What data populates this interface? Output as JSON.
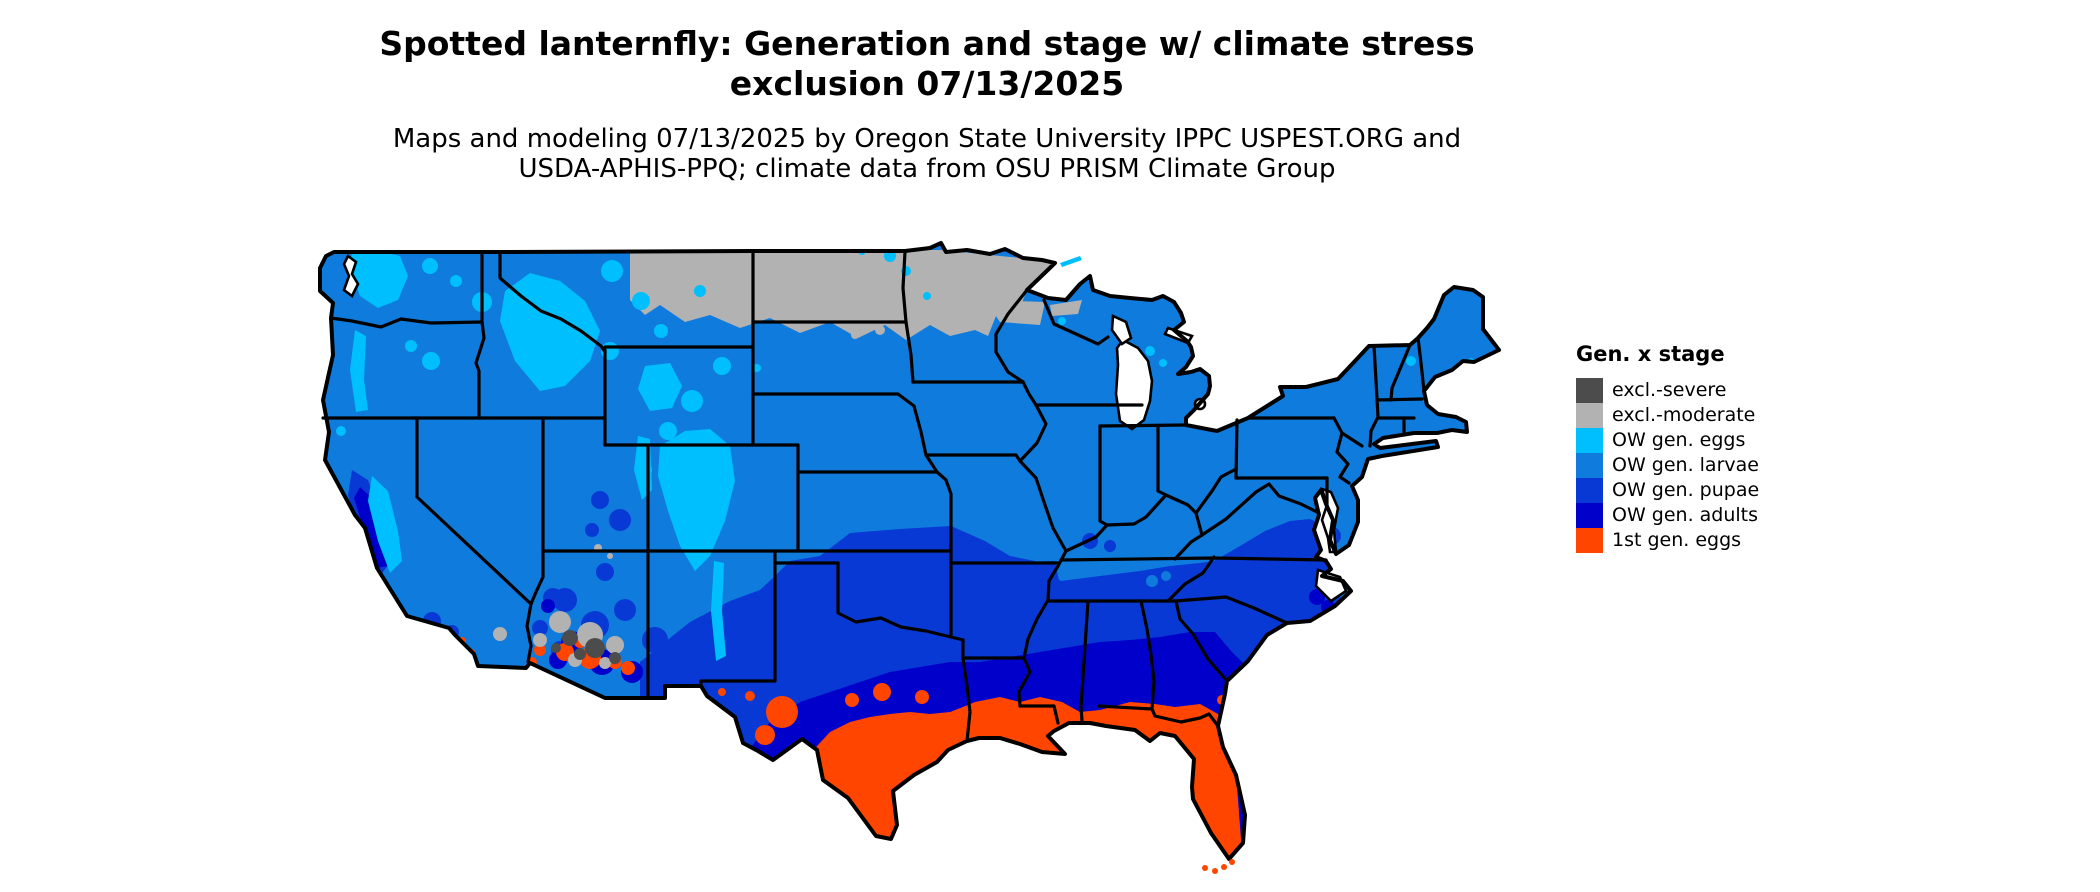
{
  "title": {
    "line1": "Spotted lanternfly: Generation and stage w/ climate stress",
    "line2": "exclusion 07/13/2025"
  },
  "subtitle": {
    "line1": "Maps and modeling 07/13/2025 by Oregon State University IPPC USPEST.ORG and",
    "line2": "USDA-APHIS-PPQ; climate data from OSU PRISM Climate Group"
  },
  "legend": {
    "title": "Gen. x stage",
    "items": [
      {
        "key": "severe",
        "label": "excl.-severe",
        "color": "#4c4c4c"
      },
      {
        "key": "moderate",
        "label": "excl.-moderate",
        "color": "#b2b2b2"
      },
      {
        "key": "eggs",
        "label": "OW gen. eggs",
        "color": "#00bfff"
      },
      {
        "key": "larvae",
        "label": "OW gen. larvae",
        "color": "#0f7bdd"
      },
      {
        "key": "pupae",
        "label": "OW gen. pupae",
        "color": "#0939d4"
      },
      {
        "key": "adults",
        "label": "OW gen. adults",
        "color": "#0000cb"
      },
      {
        "key": "first",
        "label": "1st gen. eggs",
        "color": "#ff4500"
      }
    ]
  },
  "map": {
    "kind": "raster stage map",
    "outline_color": "#000000",
    "water_color": "#ffffff"
  }
}
